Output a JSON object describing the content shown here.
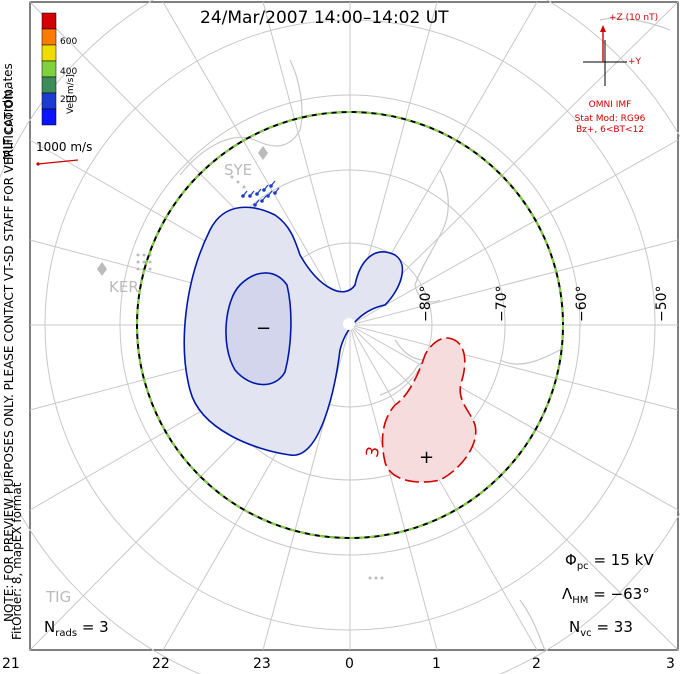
{
  "title": "24/Mar/2007 14:00–14:02 UT",
  "coordinates_label": "MLT coordinates",
  "velocity_scale": {
    "unit_label": "Vel [m/s]",
    "tick_labels": [
      "600",
      "400",
      "200"
    ],
    "colors": [
      "#d40000",
      "#ff7a00",
      "#f0dc00",
      "#7fd23c",
      "#3c8c5a",
      "#1a3cd2",
      "#0a14ff"
    ]
  },
  "reference_vector": {
    "label": "1000 m/s",
    "color": "#d00000"
  },
  "notice": {
    "line1": "NOTE: FOR PREVIEW PURPOSES ONLY. PLEASE CONTACT VT-SD STAFF FOR VERIFICATION.",
    "line2": "FitOrder: 8, mapEX format"
  },
  "imf": {
    "z_label": "+Z (10 nT)",
    "y_label": "+Y",
    "source": "OMNI IMF",
    "model_line1": "Stat Mod: RG96",
    "model_line2": "Bz+, 6<BT<12",
    "color": "#d00000"
  },
  "latitude_labels": [
    "−80°",
    "−70°",
    "−60°",
    "−50°"
  ],
  "mlt_labels": [
    "21",
    "22",
    "23",
    "0",
    "1",
    "2",
    "3"
  ],
  "station_labels": [
    "SYE",
    "KER",
    "TIG"
  ],
  "contours": {
    "negative_marker": "−",
    "positive_marker": "+",
    "positive_label": "3",
    "negative_color": "#0018a8",
    "positive_color": "#d00000"
  },
  "stats": {
    "phi_symbol": "Φ",
    "phi_sub": "pc",
    "phi_value": "= 15 kV",
    "lambda_symbol": "Λ",
    "lambda_sub": "HM",
    "lambda_value": "= −63°",
    "nvc_symbol": "N",
    "nvc_sub": "vc",
    "nvc_value": "= 33",
    "nrads_symbol": "N",
    "nrads_sub": "rads",
    "nrads_value": "= 3"
  }
}
